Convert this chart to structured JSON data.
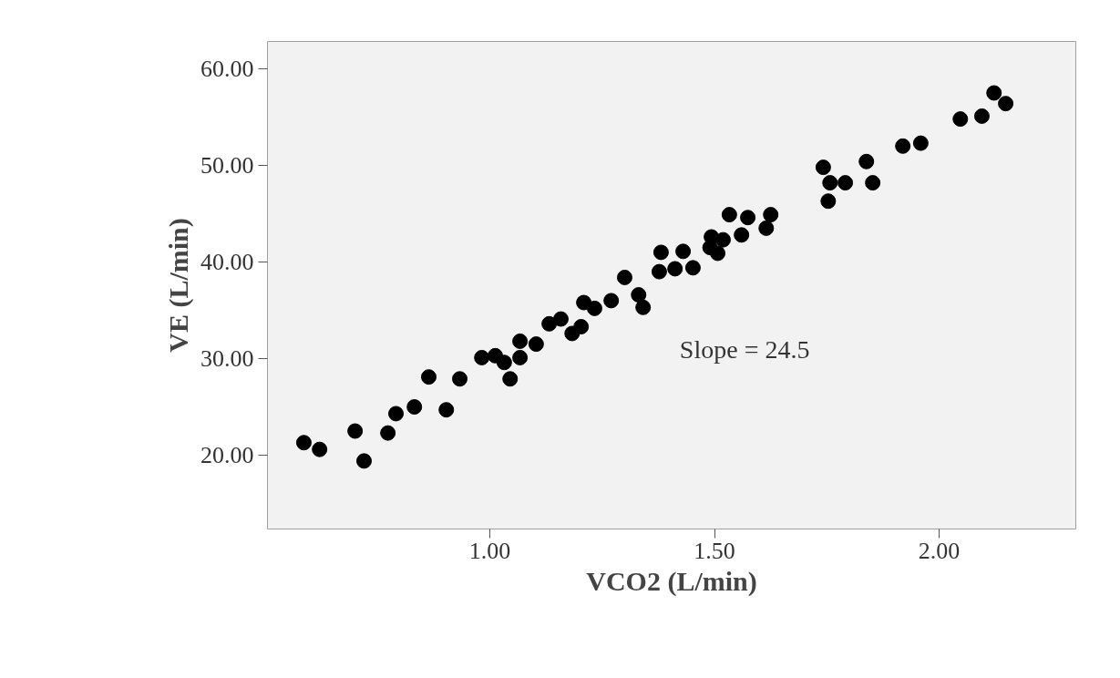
{
  "chart_data": {
    "type": "scatter",
    "xlabel": "VCO2 (L/min)",
    "ylabel": "VE (L/min)",
    "annotations": [
      "Slope = 24.5"
    ],
    "x": [
      0.586,
      0.621,
      0.7,
      0.72,
      0.773,
      0.791,
      0.832,
      0.903,
      0.864,
      0.933,
      1.045,
      0.982,
      1.012,
      1.032,
      1.067,
      1.067,
      1.103,
      1.132,
      1.158,
      1.183,
      1.203,
      1.209,
      1.233,
      1.27,
      1.3,
      1.331,
      1.341,
      1.381,
      1.43,
      1.377,
      1.412,
      1.452,
      1.493,
      1.507,
      1.519,
      1.533,
      1.574,
      1.56,
      1.625,
      1.615,
      1.49,
      1.742,
      1.753,
      1.757,
      1.791,
      1.838,
      1.852,
      1.919,
      1.959,
      2.047,
      2.095,
      2.122,
      2.148
    ],
    "values": [
      21.3,
      20.6,
      22.5,
      19.4,
      22.3,
      24.3,
      25.0,
      24.7,
      28.1,
      27.9,
      27.9,
      30.1,
      30.3,
      29.6,
      30.1,
      31.8,
      31.5,
      33.6,
      34.1,
      32.6,
      33.3,
      35.8,
      35.2,
      36.0,
      38.4,
      36.6,
      35.3,
      41.0,
      41.1,
      39.0,
      39.3,
      39.4,
      42.6,
      40.9,
      42.3,
      44.9,
      44.6,
      42.8,
      44.9,
      43.5,
      41.5,
      49.8,
      46.3,
      48.2,
      48.2,
      50.4,
      48.2,
      52.0,
      52.3,
      54.8,
      55.1,
      57.5,
      56.4
    ],
    "color": "#000000",
    "marker": "circle",
    "grid": false,
    "xlim": [
      0.505,
      2.304
    ],
    "ylim": [
      12.36,
      62.83
    ],
    "xticks": [
      {
        "value": 1.0,
        "label": "1.00"
      },
      {
        "value": 1.5,
        "label": "1.50"
      },
      {
        "value": 2.0,
        "label": "2.00"
      }
    ],
    "yticks": [
      {
        "value": 20,
        "label": "20.00"
      },
      {
        "value": 30,
        "label": "30.00"
      },
      {
        "value": 40,
        "label": "40.00"
      },
      {
        "value": 50,
        "label": "50.00"
      },
      {
        "value": 60,
        "label": "60.00"
      }
    ]
  }
}
